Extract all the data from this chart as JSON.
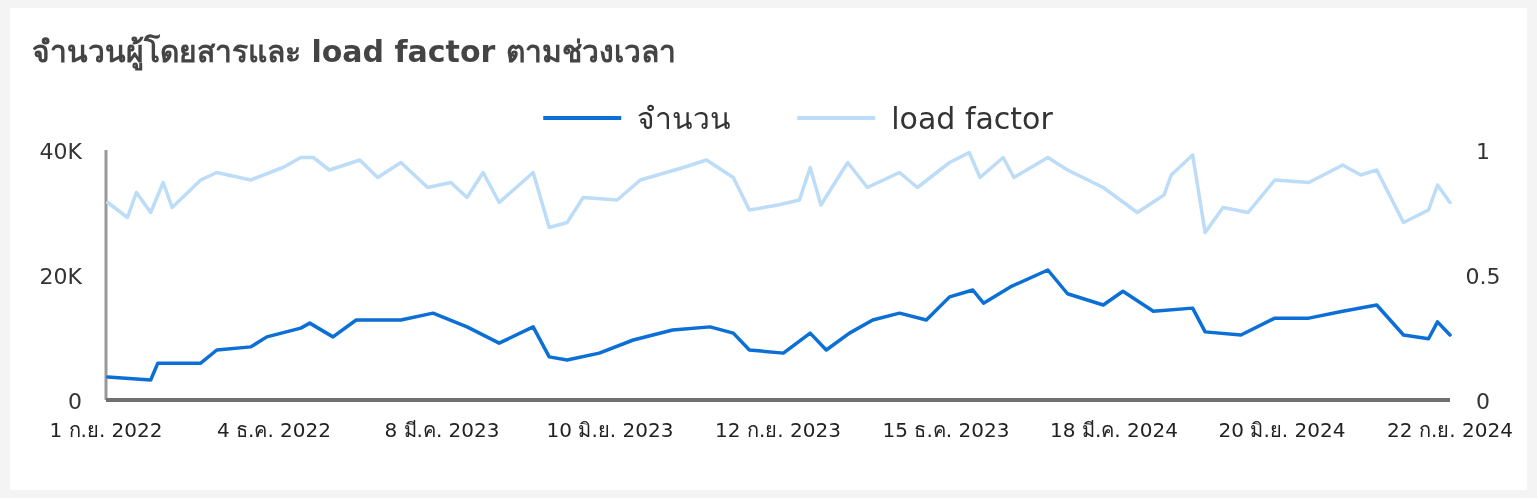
{
  "chart_data": {
    "type": "line",
    "title": "จำนวนผู้โดยสารและ load factor ตามช่วงเวลา",
    "legend": "top",
    "grid": false,
    "xlim": [
      "2022-09-01",
      "2024-09-22"
    ],
    "xticks": [
      {
        "value": "2022-09-01",
        "label": "1 ก.ย. 2022"
      },
      {
        "value": "2022-12-04",
        "label": "4 ธ.ค. 2022"
      },
      {
        "value": "2023-03-08",
        "label": "8 มี.ค. 2023"
      },
      {
        "value": "2023-06-10",
        "label": "10 มิ.ย. 2023"
      },
      {
        "value": "2023-09-12",
        "label": "12 ก.ย. 2023"
      },
      {
        "value": "2023-12-15",
        "label": "15 ธ.ค. 2023"
      },
      {
        "value": "2024-03-18",
        "label": "18 มี.ค. 2024"
      },
      {
        "value": "2024-06-20",
        "label": "20 มิ.ย. 2024"
      },
      {
        "value": "2024-09-22",
        "label": "22 ก.ย. 2024"
      }
    ],
    "ylim": [
      0,
      40000
    ],
    "yticks": [
      0,
      {
        "value": 20000,
        "label": "20K"
      },
      {
        "value": 40000,
        "label": "40K"
      }
    ],
    "y2lim": [
      0,
      1
    ],
    "y2ticks": [
      0,
      0.5,
      1
    ],
    "series": [
      {
        "name": "จำนวน",
        "color": "#0b6fd6",
        "x": [
          "2022-09-02",
          "2022-09-26",
          "2022-09-30",
          "2022-10-24",
          "2022-11-02",
          "2022-11-21",
          "2022-11-30",
          "2022-12-19",
          "2022-12-24",
          "2023-01-06",
          "2023-01-19",
          "2023-02-13",
          "2023-03-03",
          "2023-03-22",
          "2023-04-09",
          "2023-04-28",
          "2023-05-07",
          "2023-05-17",
          "2023-06-04",
          "2023-06-23",
          "2023-07-15",
          "2023-08-05",
          "2023-08-18",
          "2023-08-27",
          "2023-09-15",
          "2023-09-30",
          "2023-10-09",
          "2023-10-22",
          "2023-11-04",
          "2023-11-19",
          "2023-12-04",
          "2023-12-17",
          "2023-12-30",
          "2024-01-05",
          "2024-01-20",
          "2024-02-10",
          "2024-02-21",
          "2024-03-12",
          "2024-03-23",
          "2024-04-09",
          "2024-05-01",
          "2024-05-08",
          "2024-05-28",
          "2024-06-16",
          "2024-07-05",
          "2024-07-24",
          "2024-08-12",
          "2024-08-27",
          "2024-09-10",
          "2024-09-15",
          "2024-09-22"
        ],
        "values": [
          3700,
          3200,
          5900,
          5900,
          8000,
          8500,
          10100,
          11500,
          12300,
          10100,
          12800,
          12800,
          13900,
          11700,
          9100,
          11700,
          6900,
          6400,
          7500,
          9600,
          11200,
          11700,
          10700,
          8000,
          7500,
          10700,
          8000,
          10700,
          12800,
          13900,
          12800,
          16500,
          17600,
          15500,
          18100,
          20800,
          17000,
          15200,
          17400,
          14200,
          14700,
          10900,
          10400,
          13100,
          13100,
          14200,
          15200,
          10400,
          9800,
          12500,
          10400
        ]
      },
      {
        "name": "load factor",
        "color": "#bcdcf8",
        "axis": "y2",
        "x": [
          "2022-09-02",
          "2022-09-13",
          "2022-09-18",
          "2022-09-26",
          "2022-10-03",
          "2022-10-08",
          "2022-10-24",
          "2022-11-02",
          "2022-11-21",
          "2022-12-09",
          "2022-12-19",
          "2022-12-26",
          "2023-01-04",
          "2023-01-21",
          "2023-01-31",
          "2023-02-13",
          "2023-02-28",
          "2023-03-13",
          "2023-03-22",
          "2023-03-31",
          "2023-04-09",
          "2023-04-28",
          "2023-05-07",
          "2023-05-17",
          "2023-05-26",
          "2023-06-14",
          "2023-06-27",
          "2023-07-21",
          "2023-08-03",
          "2023-08-18",
          "2023-08-27",
          "2023-09-12",
          "2023-09-24",
          "2023-09-30",
          "2023-10-06",
          "2023-10-21",
          "2023-11-01",
          "2023-11-19",
          "2023-11-29",
          "2023-12-17",
          "2023-12-28",
          "2024-01-03",
          "2024-01-16",
          "2024-01-22",
          "2024-02-10",
          "2024-02-21",
          "2024-03-12",
          "2024-03-31",
          "2024-04-15",
          "2024-04-19",
          "2024-05-01",
          "2024-05-08",
          "2024-05-18",
          "2024-06-01",
          "2024-06-16",
          "2024-07-05",
          "2024-07-24",
          "2024-08-03",
          "2024-08-12",
          "2024-08-27",
          "2024-09-10",
          "2024-09-15",
          "2024-09-22"
        ],
        "values": [
          0.79,
          0.73,
          0.83,
          0.75,
          0.87,
          0.77,
          0.88,
          0.91,
          0.88,
          0.93,
          0.97,
          0.97,
          0.92,
          0.96,
          0.89,
          0.95,
          0.85,
          0.87,
          0.81,
          0.91,
          0.79,
          0.91,
          0.69,
          0.71,
          0.81,
          0.8,
          0.88,
          0.93,
          0.96,
          0.89,
          0.76,
          0.78,
          0.8,
          0.93,
          0.78,
          0.95,
          0.85,
          0.91,
          0.85,
          0.95,
          0.99,
          0.89,
          0.97,
          0.89,
          0.97,
          0.92,
          0.85,
          0.75,
          0.82,
          0.9,
          0.98,
          0.67,
          0.77,
          0.75,
          0.88,
          0.87,
          0.94,
          0.9,
          0.92,
          0.71,
          0.76,
          0.86,
          0.79
        ]
      }
    ]
  }
}
